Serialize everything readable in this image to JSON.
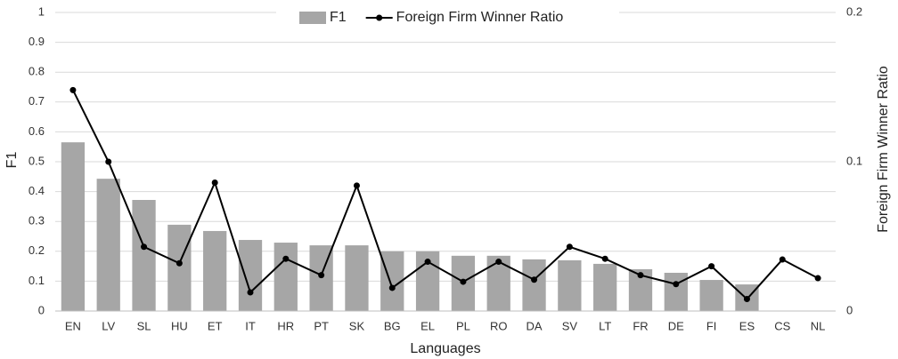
{
  "chart_data": {
    "type": "bar",
    "x_label": "Languages",
    "y_label": "F1",
    "y2_label": "Foreign Firm Winner Ratio",
    "categories": [
      "EN",
      "LV",
      "SL",
      "HU",
      "ET",
      "IT",
      "HR",
      "PT",
      "SK",
      "BG",
      "EL",
      "PL",
      "RO",
      "DA",
      "SV",
      "LT",
      "FR",
      "DE",
      "FI",
      "ES",
      "CS",
      "NL"
    ],
    "series": [
      {
        "name": "F1",
        "type": "bar",
        "color": "#a6a6a6",
        "values": [
          0.565,
          0.443,
          0.372,
          0.289,
          0.268,
          0.238,
          0.229,
          0.22,
          0.22,
          0.2,
          0.2,
          0.185,
          0.185,
          0.173,
          0.17,
          0.158,
          0.14,
          0.128,
          0.104,
          0.089,
          null,
          null
        ]
      },
      {
        "name": "Foreign Firm Winner Ratio",
        "type": "line",
        "axis": "y2",
        "color": "#000000",
        "values": [
          0.148,
          0.1,
          0.043,
          0.032,
          0.086,
          0.0125,
          0.035,
          0.024,
          0.084,
          0.0155,
          0.033,
          0.0196,
          0.033,
          0.021,
          0.043,
          0.035,
          0.024,
          0.018,
          0.03,
          0.008,
          0.0345,
          0.022
        ]
      }
    ],
    "ylim": [
      0,
      1
    ],
    "yticks": [
      0,
      0.1,
      0.2,
      0.3,
      0.4,
      0.5,
      0.6,
      0.7,
      0.8,
      0.9,
      1
    ],
    "y2lim": [
      0,
      0.2
    ],
    "y2ticks": [
      0,
      0.1,
      0.2
    ],
    "grid": true,
    "legend": "top"
  }
}
